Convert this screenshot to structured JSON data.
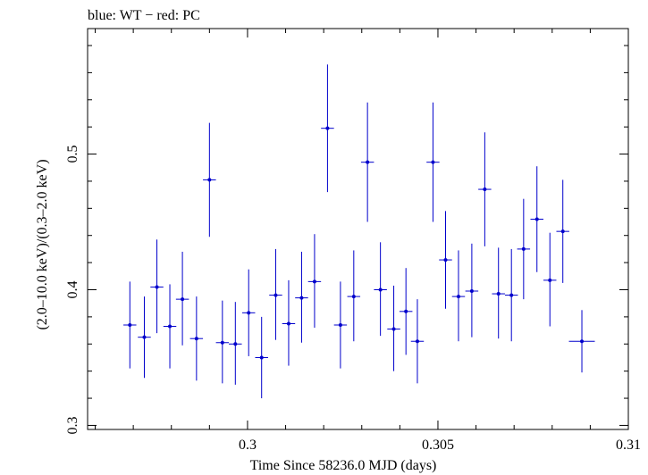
{
  "chart_data": {
    "type": "scatter",
    "title": "blue: WT − red: PC",
    "xlabel": "Time Since 58236.0 MJD (days)",
    "ylabel": "(2.0–10.0 keV)/(0.3–2.0 keV)",
    "xlim": [
      0.2958,
      0.31
    ],
    "ylim": [
      0.297,
      0.5925
    ],
    "x_ticks": [
      0.3,
      0.305,
      0.31
    ],
    "x_tick_labels": [
      "0.3",
      "0.305",
      "0.31"
    ],
    "y_ticks": [
      0.3,
      0.4,
      0.5
    ],
    "y_tick_labels": [
      "0.3",
      "0.4",
      "0.5"
    ],
    "grid": false,
    "legend": "none",
    "series": [
      {
        "color": "#0000cc",
        "points": [
          {
            "x": 0.29691,
            "xerr": 0.00017,
            "y": 0.374,
            "ylo": 0.342,
            "yhi": 0.406
          },
          {
            "x": 0.29729,
            "xerr": 0.00017,
            "y": 0.365,
            "ylo": 0.335,
            "yhi": 0.395
          },
          {
            "x": 0.29762,
            "xerr": 0.00017,
            "y": 0.402,
            "ylo": 0.368,
            "yhi": 0.437
          },
          {
            "x": 0.29796,
            "xerr": 0.00017,
            "y": 0.373,
            "ylo": 0.342,
            "yhi": 0.404
          },
          {
            "x": 0.29829,
            "xerr": 0.00017,
            "y": 0.393,
            "ylo": 0.359,
            "yhi": 0.428
          },
          {
            "x": 0.29866,
            "xerr": 0.00017,
            "y": 0.364,
            "ylo": 0.333,
            "yhi": 0.395
          },
          {
            "x": 0.299,
            "xerr": 0.00017,
            "y": 0.481,
            "ylo": 0.439,
            "yhi": 0.523
          },
          {
            "x": 0.29934,
            "xerr": 0.00017,
            "y": 0.361,
            "ylo": 0.331,
            "yhi": 0.392
          },
          {
            "x": 0.29968,
            "xerr": 0.00017,
            "y": 0.36,
            "ylo": 0.33,
            "yhi": 0.391
          },
          {
            "x": 0.30003,
            "xerr": 0.00017,
            "y": 0.383,
            "ylo": 0.351,
            "yhi": 0.415
          },
          {
            "x": 0.30037,
            "xerr": 0.00017,
            "y": 0.35,
            "ylo": 0.32,
            "yhi": 0.38
          },
          {
            "x": 0.30074,
            "xerr": 0.00017,
            "y": 0.396,
            "ylo": 0.363,
            "yhi": 0.43
          },
          {
            "x": 0.30108,
            "xerr": 0.00017,
            "y": 0.375,
            "ylo": 0.344,
            "yhi": 0.407
          },
          {
            "x": 0.30142,
            "xerr": 0.00017,
            "y": 0.394,
            "ylo": 0.361,
            "yhi": 0.428
          },
          {
            "x": 0.30176,
            "xerr": 0.00017,
            "y": 0.406,
            "ylo": 0.372,
            "yhi": 0.441
          },
          {
            "x": 0.3021,
            "xerr": 0.00017,
            "y": 0.519,
            "ylo": 0.472,
            "yhi": 0.566
          },
          {
            "x": 0.30244,
            "xerr": 0.00017,
            "y": 0.374,
            "ylo": 0.342,
            "yhi": 0.406
          },
          {
            "x": 0.30279,
            "xerr": 0.00017,
            "y": 0.395,
            "ylo": 0.362,
            "yhi": 0.429
          },
          {
            "x": 0.30315,
            "xerr": 0.00017,
            "y": 0.494,
            "ylo": 0.45,
            "yhi": 0.538
          },
          {
            "x": 0.30349,
            "xerr": 0.00017,
            "y": 0.4,
            "ylo": 0.366,
            "yhi": 0.435
          },
          {
            "x": 0.30384,
            "xerr": 0.00017,
            "y": 0.371,
            "ylo": 0.34,
            "yhi": 0.403
          },
          {
            "x": 0.30416,
            "xerr": 0.00017,
            "y": 0.384,
            "ylo": 0.352,
            "yhi": 0.416
          },
          {
            "x": 0.30446,
            "xerr": 0.00017,
            "y": 0.362,
            "ylo": 0.331,
            "yhi": 0.393
          },
          {
            "x": 0.30487,
            "xerr": 0.00017,
            "y": 0.494,
            "ylo": 0.45,
            "yhi": 0.538
          },
          {
            "x": 0.3052,
            "xerr": 0.00017,
            "y": 0.422,
            "ylo": 0.386,
            "yhi": 0.458
          },
          {
            "x": 0.30554,
            "xerr": 0.00017,
            "y": 0.395,
            "ylo": 0.362,
            "yhi": 0.429
          },
          {
            "x": 0.30589,
            "xerr": 0.00017,
            "y": 0.399,
            "ylo": 0.365,
            "yhi": 0.434
          },
          {
            "x": 0.30623,
            "xerr": 0.00017,
            "y": 0.474,
            "ylo": 0.432,
            "yhi": 0.516
          },
          {
            "x": 0.30659,
            "xerr": 0.00017,
            "y": 0.397,
            "ylo": 0.364,
            "yhi": 0.431
          },
          {
            "x": 0.30693,
            "xerr": 0.00017,
            "y": 0.396,
            "ylo": 0.362,
            "yhi": 0.43
          },
          {
            "x": 0.30725,
            "xerr": 0.00017,
            "y": 0.43,
            "ylo": 0.393,
            "yhi": 0.467
          },
          {
            "x": 0.3076,
            "xerr": 0.00017,
            "y": 0.452,
            "ylo": 0.413,
            "yhi": 0.491
          },
          {
            "x": 0.30794,
            "xerr": 0.00017,
            "y": 0.407,
            "ylo": 0.373,
            "yhi": 0.442
          },
          {
            "x": 0.30828,
            "xerr": 0.00017,
            "y": 0.443,
            "ylo": 0.405,
            "yhi": 0.481
          },
          {
            "x": 0.30878,
            "xerr": 0.00034,
            "y": 0.362,
            "ylo": 0.339,
            "yhi": 0.385
          }
        ]
      }
    ]
  }
}
